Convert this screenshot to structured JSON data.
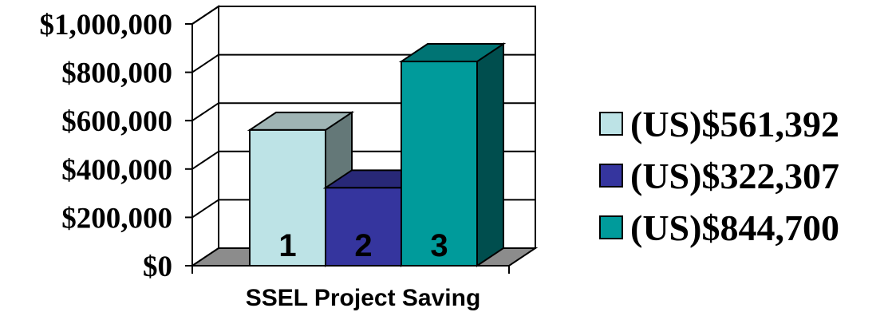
{
  "chart_data": {
    "type": "bar",
    "xlabel": "SSEL Project Saving",
    "ylabel": "",
    "ylim": [
      0,
      1000000
    ],
    "yticks": [
      "$0",
      "$200,000",
      "$400,000",
      "$600,000",
      "$800,000",
      "$1,000,000"
    ],
    "grid": true,
    "legend_position": "right",
    "series": [
      {
        "name": "(US)$561,392",
        "label": "1",
        "value": 561392,
        "color": "#bde3e6"
      },
      {
        "name": "(US)$322,307",
        "label": "2",
        "value": 322307,
        "color": "#35359e"
      },
      {
        "name": "(US)$844,700",
        "label": "3",
        "value": 844700,
        "color": "#009b9b"
      }
    ]
  }
}
